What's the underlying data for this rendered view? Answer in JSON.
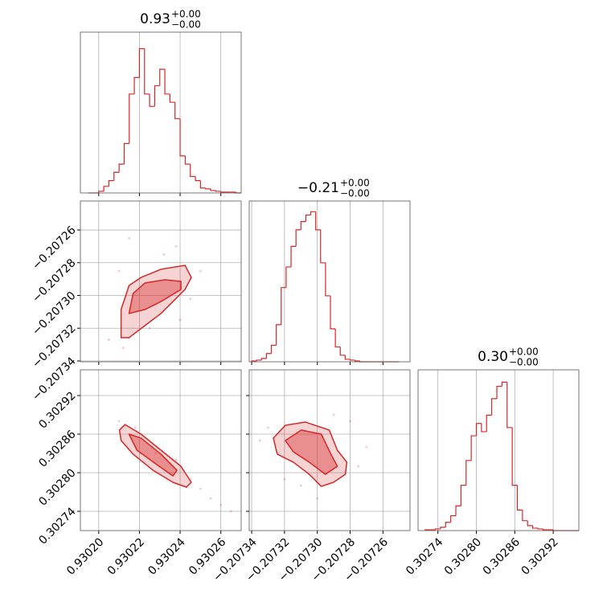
{
  "chart_data": [
    {
      "type": "histogram",
      "title": "0.93",
      "title_upper": "+0.00",
      "title_lower": "−0.00",
      "color": "#d62728",
      "grid": true,
      "xlim": [
        0.930191,
        0.93027
      ],
      "xticks": [
        {
          "value": 0.9302,
          "label": "0.93020"
        },
        0.93022,
        0.93024,
        0.93026
      ],
      "ylim": [
        0,
        195
      ],
      "bins": [
        0.930195,
        0.9301975,
        0.9302,
        0.9302025,
        0.930205,
        0.9302075,
        0.93021,
        0.9302125,
        0.930215,
        0.9302175,
        0.93022,
        0.9302225,
        0.930225,
        0.9302275,
        0.93023,
        0.9302325,
        0.930235,
        0.9302375,
        0.93024,
        0.9302425,
        0.930245,
        0.9302475,
        0.93025,
        0.9302525,
        0.930255,
        0.9302575,
        0.93026,
        0.9302625,
        0.930265,
        0.9302675,
        0.93027
      ],
      "counts": [
        0,
        0,
        2,
        8,
        15,
        25,
        35,
        60,
        120,
        140,
        175,
        120,
        105,
        130,
        150,
        120,
        110,
        90,
        45,
        35,
        20,
        15,
        6,
        5,
        3,
        2,
        1,
        1,
        1,
        0
      ]
    },
    {
      "type": "scatter",
      "color": "#d62728",
      "grid": true,
      "ytick_labels": true,
      "xlim": [
        0.930191,
        0.93027
      ],
      "xticks": [
        {
          "value": 0.9302,
          "label": "0.93020"
        },
        0.93022,
        0.93024,
        0.93026
      ],
      "ylim": [
        -0.2073405,
        -0.2072423
      ],
      "yticks": [
        {
          "value": -0.20726,
          "label": "−0.20726"
        },
        {
          "value": -0.20728,
          "label": "−0.20728"
        },
        {
          "value": -0.2073,
          "label": "−0.20730"
        },
        {
          "value": -0.20732,
          "label": "−0.20732"
        },
        {
          "value": -0.20734,
          "label": "−0.20734"
        }
      ],
      "points": {
        "x": [
          0.930205,
          0.930212,
          0.93021,
          0.930238,
          0.930245,
          0.93025,
          0.930225,
          0.930232,
          0.930215,
          0.93024
        ],
        "y": [
          -0.207327,
          -0.207332,
          -0.207285,
          -0.20727,
          -0.207302,
          -0.207285,
          -0.20732,
          -0.207275,
          -0.207265,
          -0.207315
        ]
      },
      "contours": [
        {
          "x": [
            0.930211,
            0.930211,
            0.9302149,
            0.9302208,
            0.9302306,
            0.9302424,
            0.9302455,
            0.9302424,
            0.9302365,
            0.9302306,
            0.9302227,
            0.9302149
          ],
          "y": [
            -0.2073258,
            -0.2073086,
            -0.2072939,
            -0.207289,
            -0.207284,
            -0.2072816,
            -0.207289,
            -0.2072963,
            -0.2073037,
            -0.207311,
            -0.2073184,
            -0.2073258
          ]
        },
        {
          "x": [
            0.9302149,
            0.9302169,
            0.9302227,
            0.9302325,
            0.9302404,
            0.9302404,
            0.9302306,
            0.9302227
          ],
          "y": [
            -0.207311,
            -0.2072988,
            -0.2072924,
            -0.2072904,
            -0.2072914,
            -0.2072963,
            -0.2073037,
            -0.2073086
          ]
        }
      ]
    },
    {
      "type": "histogram",
      "title": "−0.21",
      "title_upper": "+0.00",
      "title_lower": "−0.00",
      "color": "#d62728",
      "grid": true,
      "xlim": [
        -0.2073415,
        -0.2072435
      ],
      "xticks": [
        {
          "value": -0.20734,
          "label": "−0.20734"
        },
        {
          "value": -0.20732,
          "label": "−0.20732"
        },
        {
          "value": -0.2073,
          "label": "−0.20730"
        },
        {
          "value": -0.20728,
          "label": "−0.20728"
        },
        {
          "value": -0.20726,
          "label": "−0.20726"
        }
      ],
      "ylim": [
        0,
        195
      ],
      "bins": [
        -0.20734,
        -0.207337,
        -0.207334,
        -0.207331,
        -0.207328,
        -0.207325,
        -0.207322,
        -0.207319,
        -0.207316,
        -0.207313,
        -0.20731,
        -0.207307,
        -0.207304,
        -0.207301,
        -0.207298,
        -0.207295,
        -0.207292,
        -0.207289,
        -0.207286,
        -0.207283,
        -0.20728,
        -0.207277,
        -0.207274,
        -0.207271,
        -0.207268,
        -0.207265,
        -0.207262,
        -0.207259,
        -0.207256,
        -0.207253,
        -0.20725
      ],
      "counts": [
        1,
        2,
        4,
        10,
        20,
        45,
        90,
        115,
        140,
        160,
        170,
        178,
        182,
        160,
        120,
        80,
        40,
        18,
        8,
        3,
        2,
        1,
        0,
        0,
        0,
        0,
        0,
        0,
        0,
        0
      ]
    },
    {
      "type": "scatter",
      "color": "#d62728",
      "grid": true,
      "xtick_labels": true,
      "ytick_labels": true,
      "xlim": [
        0.930191,
        0.93027
      ],
      "xticks": [
        {
          "value": 0.9302,
          "label": "0.93020"
        },
        0.93022,
        0.93024,
        0.93026
      ],
      "ylim": [
        0.30271,
        0.30296
      ],
      "yticks": [
        0.30292,
        0.30286,
        {
          "value": 0.3028,
          "label": "0.30280"
        },
        0.30274
      ],
      "points": {
        "x": [
          0.93021,
          0.930218,
          0.930245,
          0.93025,
          0.930255,
          0.93026,
          0.930228,
          0.930238,
          0.930265
        ],
        "y": [
          0.30288,
          0.30287,
          0.30279,
          0.302775,
          0.30276,
          0.30275,
          0.30283,
          0.30282,
          0.30274
        ]
      },
      "contours": [
        {
          "x": [
            0.9302102,
            0.9302129,
            0.9302208,
            0.9302306,
            0.9302404,
            0.9302455,
            0.9302431,
            0.9302365,
            0.9302267,
            0.9302169,
            0.930211
          ],
          "y": [
            0.3028663,
            0.302875,
            0.30286,
            0.302835,
            0.30281,
            0.302785,
            0.3027775,
            0.302785,
            0.3028038,
            0.3028288,
            0.30285
          ]
        },
        {
          "x": [
            0.9302149,
            0.9302208,
            0.9302306,
            0.9302384,
            0.9302365,
            0.9302286,
            0.9302188
          ],
          "y": [
            0.30286,
            0.3028538,
            0.3028288,
            0.3028038,
            0.302795,
            0.3028125,
            0.302835
          ]
        }
      ]
    },
    {
      "type": "scatter",
      "color": "#d62728",
      "grid": true,
      "xtick_labels": true,
      "xlim": [
        -0.2073415,
        -0.2072435
      ],
      "xticks": [
        {
          "value": -0.20734,
          "label": "−0.20734"
        },
        {
          "value": -0.20732,
          "label": "−0.20732"
        },
        {
          "value": -0.2073,
          "label": "−0.20730"
        },
        {
          "value": -0.20728,
          "label": "−0.20728"
        },
        {
          "value": -0.20726,
          "label": "−0.20726"
        }
      ],
      "ylim": [
        0.30271,
        0.30296
      ],
      "yticks": [
        0.30292,
        0.30286,
        {
          "value": 0.3028,
          "label": "0.30280"
        },
        0.30274
      ],
      "points": {
        "x": [
          -0.20733,
          -0.207335,
          -0.20728,
          -0.207275,
          -0.2073,
          -0.20731,
          -0.20727,
          -0.20732,
          -0.20729
        ],
        "y": [
          0.30287,
          0.30285,
          0.30288,
          0.30281,
          0.30276,
          0.30278,
          0.30284,
          0.30279,
          0.30289
        ]
      },
      "contours": [
        {
          "x": [
            -0.2073268,
            -0.2073195,
            -0.2073073,
            -0.2072927,
            -0.2072878,
            -0.207282,
            -0.2072829,
            -0.2072902,
            -0.2072976,
            -0.2073049,
            -0.2073146,
            -0.2073244
          ],
          "y": [
            0.3028538,
            0.3028738,
            0.3028788,
            0.3028663,
            0.302835,
            0.3028163,
            0.3027975,
            0.302785,
            0.3027788,
            0.3027975,
            0.3028163,
            0.3028288
          ]
        },
        {
          "x": [
            -0.2073195,
            -0.2073098,
            -0.2072976,
            -0.2072917,
            -0.2072878,
            -0.2072951,
            -0.2073049,
            -0.2073146
          ],
          "y": [
            0.30285,
            0.3028663,
            0.30286,
            0.3028288,
            0.30281,
            0.3027975,
            0.3028163,
            0.3028325
          ]
        }
      ]
    },
    {
      "type": "histogram",
      "title": "0.30",
      "title_upper": "+0.00",
      "title_lower": "−0.00",
      "color": "#d62728",
      "grid": true,
      "xtick_labels": true,
      "xlim": [
        0.302709,
        0.30296
      ],
      "xticks": [
        0.30274,
        {
          "value": 0.3028,
          "label": "0.30280"
        },
        0.30286,
        0.30292
      ],
      "ylim": [
        0,
        195
      ],
      "bins": [
        0.30272,
        0.302728,
        0.302736,
        0.302744,
        0.302752,
        0.30276,
        0.302768,
        0.302776,
        0.302784,
        0.302792,
        0.3028,
        0.302808,
        0.302816,
        0.302824,
        0.302832,
        0.30284,
        0.302848,
        0.302856,
        0.302864,
        0.302872,
        0.30288,
        0.302888,
        0.302896,
        0.302904,
        0.302912,
        0.30292,
        0.302928,
        0.302936,
        0.302944,
        0.302952,
        0.30296
      ],
      "counts": [
        1,
        1,
        2,
        4,
        10,
        18,
        30,
        55,
        85,
        115,
        130,
        120,
        140,
        160,
        175,
        180,
        125,
        55,
        25,
        12,
        6,
        3,
        2,
        1,
        1,
        0,
        0,
        0,
        0,
        0
      ]
    }
  ]
}
